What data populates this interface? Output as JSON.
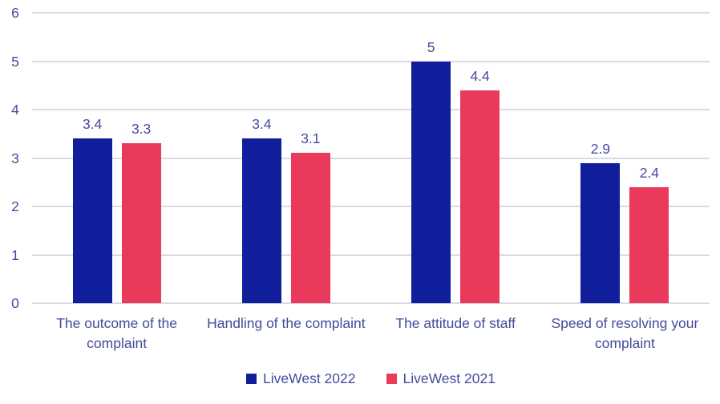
{
  "chart_data": {
    "type": "bar",
    "title": "",
    "categories": [
      "The outcome of the complaint",
      "Handling of the complaint",
      "The attitude of staff",
      "Speed of resolving your complaint"
    ],
    "series": [
      {
        "name": "LiveWest 2022",
        "color": "#101e9b",
        "values": [
          3.4,
          3.4,
          5,
          2.9
        ]
      },
      {
        "name": "LiveWest 2021",
        "color": "#e93a5c",
        "values": [
          3.3,
          3.1,
          4.4,
          2.4
        ]
      }
    ],
    "ylim": [
      0,
      6
    ],
    "yticks": [
      0,
      1,
      2,
      3,
      4,
      5,
      6
    ],
    "grid": true,
    "legend_position": "bottom",
    "colors": {
      "text": "#454a9b",
      "gridline": "#d9d9e8",
      "background": "#ffffff"
    }
  }
}
